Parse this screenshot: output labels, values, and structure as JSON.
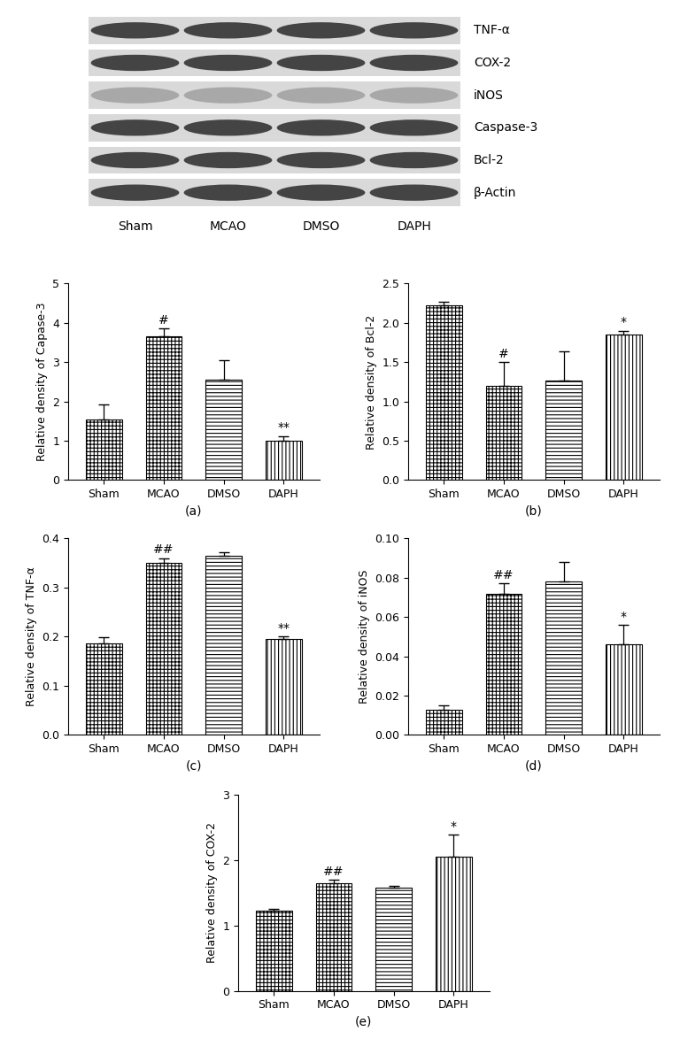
{
  "blot": {
    "rows": [
      "TNF-α",
      "COX-2",
      "iNOS",
      "Caspase-3",
      "Bcl-2",
      "β-Actin"
    ],
    "lanes": [
      "Sham",
      "MCAO",
      "DMSO",
      "DAPH"
    ]
  },
  "chart_data": [
    {
      "type": "bar",
      "xlabel": "(a)",
      "ylabel": "Relative density of Capase-3",
      "categories": [
        "Sham",
        "MCAO",
        "DMSO",
        "DAPH"
      ],
      "values": [
        1.55,
        3.65,
        2.55,
        1.0
      ],
      "errors": [
        0.38,
        0.2,
        0.5,
        0.12
      ],
      "significance": [
        null,
        "#",
        null,
        "**"
      ],
      "color": "#ffffff",
      "ylim": [
        0,
        5
      ],
      "yticks": [
        0,
        1,
        2,
        3,
        4,
        5
      ]
    },
    {
      "type": "bar",
      "xlabel": "(b)",
      "ylabel": "Relative density of Bcl-2",
      "categories": [
        "Sham",
        "MCAO",
        "DMSO",
        "DAPH"
      ],
      "values": [
        2.22,
        1.2,
        1.27,
        1.85
      ],
      "errors": [
        0.05,
        0.3,
        0.37,
        0.05
      ],
      "significance": [
        null,
        "#",
        null,
        "*"
      ],
      "color": "#ffffff",
      "ylim": [
        0,
        2.5
      ],
      "yticks": [
        {
          "value": 0,
          "label": "0.0"
        },
        {
          "value": 0.5,
          "label": "0.5"
        },
        {
          "value": 1,
          "label": "1.0"
        },
        {
          "value": 1.5,
          "label": "1.5"
        },
        {
          "value": 2,
          "label": "2.0"
        },
        {
          "value": 2.5,
          "label": "2.5"
        }
      ]
    },
    {
      "type": "bar",
      "xlabel": "(c)",
      "ylabel": "Relative density of TNF-α",
      "categories": [
        "Sham",
        "MCAO",
        "DMSO",
        "DAPH"
      ],
      "values": [
        0.187,
        0.35,
        0.365,
        0.195
      ],
      "errors": [
        0.012,
        0.01,
        0.006,
        0.005
      ],
      "significance": [
        null,
        "##",
        null,
        "**"
      ],
      "color": "#ffffff",
      "ylim": [
        0,
        0.4
      ],
      "yticks": [
        {
          "value": 0,
          "label": "0.0"
        },
        0.1,
        0.2,
        0.3,
        0.4
      ]
    },
    {
      "type": "bar",
      "xlabel": "(d)",
      "ylabel": "Relative density of iNOS",
      "categories": [
        "Sham",
        "MCAO",
        "DMSO",
        "DAPH"
      ],
      "values": [
        0.013,
        0.072,
        0.078,
        0.046
      ],
      "errors": [
        0.002,
        0.005,
        0.01,
        0.01
      ],
      "significance": [
        null,
        "##",
        null,
        "*"
      ],
      "color": "#ffffff",
      "ylim": [
        0,
        0.1
      ],
      "yticks": [
        {
          "value": 0,
          "label": "0.00"
        },
        0.02,
        0.04,
        0.06,
        0.08,
        {
          "value": 0.1,
          "label": "0.10"
        }
      ]
    },
    {
      "type": "bar",
      "xlabel": "(e)",
      "ylabel": "Relative density of COX-2",
      "categories": [
        "Sham",
        "MCAO",
        "DMSO",
        "DAPH"
      ],
      "values": [
        1.22,
        1.65,
        1.57,
        2.05
      ],
      "errors": [
        0.03,
        0.05,
        0.03,
        0.33
      ],
      "significance": [
        null,
        "##",
        null,
        "*"
      ],
      "color": "#ffffff",
      "ylim": [
        0,
        3
      ],
      "yticks": [
        0,
        1,
        2,
        3
      ]
    }
  ]
}
